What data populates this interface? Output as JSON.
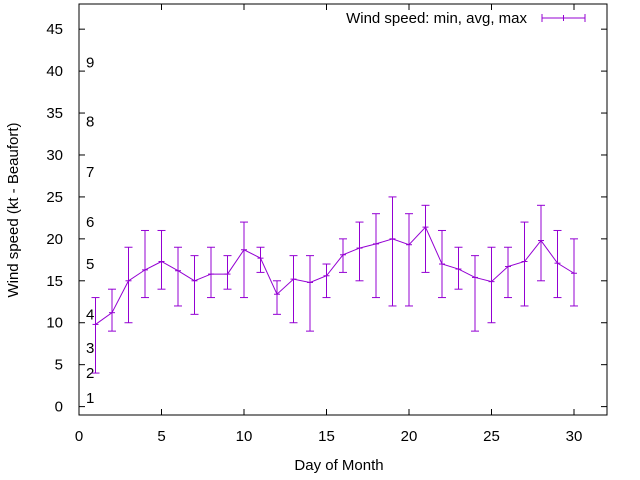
{
  "chart_data": {
    "type": "line",
    "xlabel": "Day of Month",
    "ylabel": "Wind speed (kt - Beaufort)",
    "xlim": [
      0,
      32
    ],
    "ylim": [
      -1,
      48
    ],
    "xticks": [
      0,
      5,
      10,
      15,
      20,
      25,
      30
    ],
    "yticks": [
      0,
      5,
      10,
      15,
      20,
      25,
      30,
      35,
      40,
      45
    ],
    "grid": false,
    "legend_position": "top-right",
    "beaufort_labels": [
      {
        "label": "1",
        "y": 1
      },
      {
        "label": "2",
        "y": 4
      },
      {
        "label": "3",
        "y": 7
      },
      {
        "label": "4",
        "y": 11
      },
      {
        "label": "5",
        "y": 17
      },
      {
        "label": "6",
        "y": 22
      },
      {
        "label": "7",
        "y": 28
      },
      {
        "label": "8",
        "y": 34
      },
      {
        "label": "9",
        "y": 41
      }
    ],
    "series": [
      {
        "name": "Wind speed: min, avg, max",
        "color": "#9400d3",
        "x": [
          1,
          2,
          3,
          4,
          5,
          6,
          7,
          8,
          9,
          10,
          11,
          12,
          13,
          14,
          15,
          16,
          17,
          18,
          19,
          20,
          21,
          22,
          23,
          24,
          25,
          26,
          27,
          28,
          29,
          30
        ],
        "avg": [
          9.8,
          11.2,
          15.0,
          16.3,
          17.3,
          16.2,
          15.0,
          15.8,
          15.8,
          18.7,
          17.7,
          13.4,
          15.2,
          14.8,
          15.6,
          18.1,
          18.9,
          19.4,
          20.0,
          19.3,
          21.4,
          17.0,
          16.4,
          15.4,
          14.9,
          16.7,
          17.3,
          19.8,
          17.1,
          15.9
        ],
        "min": [
          4,
          9,
          10,
          13,
          14,
          12,
          11,
          13,
          14,
          13,
          16,
          11,
          10,
          9,
          13,
          16,
          15,
          13,
          12,
          12,
          16,
          13,
          14,
          9,
          10,
          13,
          12,
          15,
          13,
          12
        ],
        "max": [
          13,
          14,
          19,
          21,
          21,
          19,
          18,
          19,
          18,
          22,
          19,
          15,
          18,
          18,
          17,
          20,
          22,
          23,
          25,
          23,
          24,
          21,
          19,
          18,
          19,
          19,
          22,
          24,
          21,
          20
        ]
      }
    ]
  }
}
